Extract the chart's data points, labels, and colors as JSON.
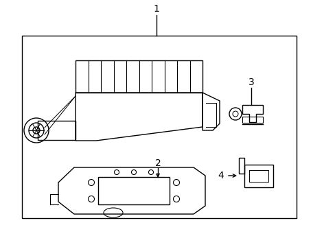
{
  "background_color": "#ffffff",
  "line_color": "#000000",
  "fig_width": 4.89,
  "fig_height": 3.6,
  "dpi": 100,
  "labels": [
    "1",
    "2",
    "3",
    "4"
  ]
}
